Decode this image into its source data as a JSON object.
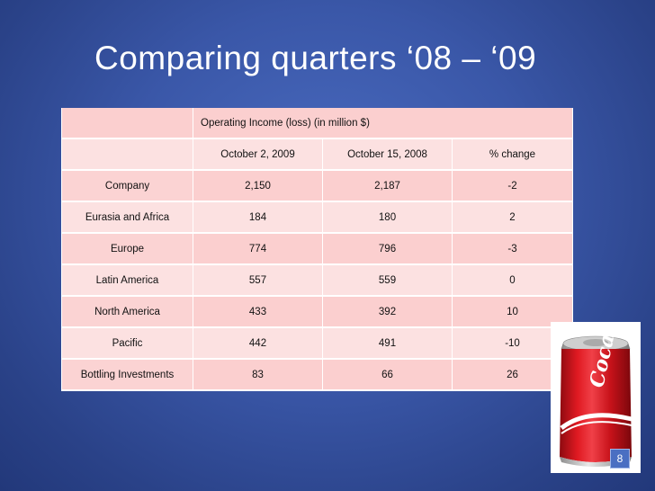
{
  "slide": {
    "title": "Comparing quarters ‘08 – ‘09",
    "page_number": "8"
  },
  "table": {
    "caption": "Operating Income (loss) (in million $)",
    "columns": [
      "",
      "October 2, 2009",
      "October 15, 2008",
      "% change"
    ],
    "rows": [
      [
        "Company",
        "2,150",
        "2,187",
        "-2"
      ],
      [
        "Eurasia and Africa",
        "184",
        "180",
        "2"
      ],
      [
        "Europe",
        "774",
        "796",
        "-3"
      ],
      [
        "Latin America",
        "557",
        "559",
        "0"
      ],
      [
        "North America",
        "433",
        "392",
        "10"
      ],
      [
        "Pacific",
        "442",
        "491",
        "-10"
      ],
      [
        "Bottling Investments",
        "83",
        "66",
        "26"
      ]
    ]
  },
  "image": {
    "icon": "coca-cola-can-icon",
    "logo_text": "Coca-Cola"
  },
  "colors": {
    "background": "#3a57a8",
    "table_fill": "#fbcfcf",
    "can_red": "#d8141e"
  }
}
